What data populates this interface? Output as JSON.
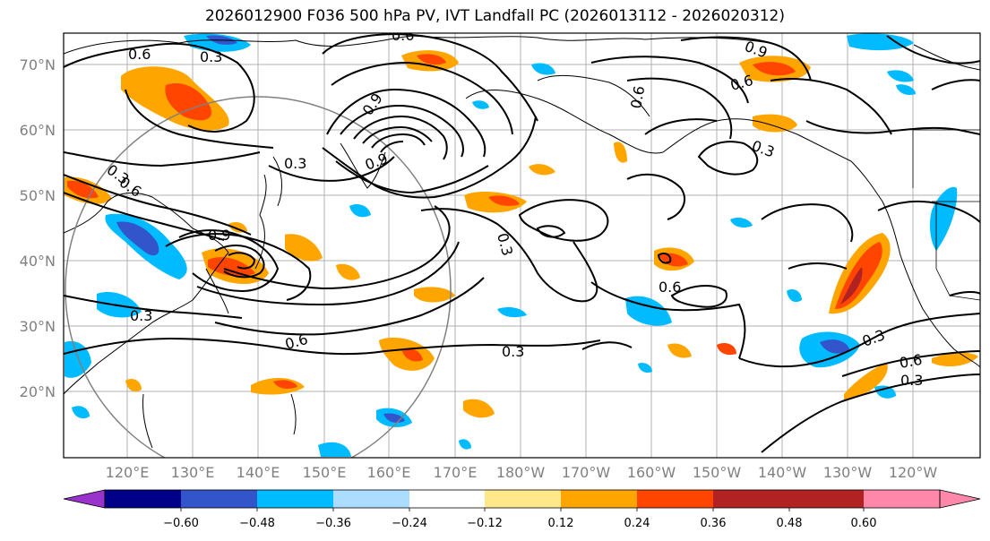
{
  "title": "2026012900 F036 500 hPa PV, IVT Landfall PC (2026013112 - 2026020312)",
  "lat_labels": [
    "70°N",
    "60°N",
    "50°N",
    "40°N",
    "30°N",
    "20°N"
  ],
  "lon_labels": [
    "120°E",
    "130°E",
    "140°E",
    "150°E",
    "160°E",
    "170°E",
    "180°W",
    "170°W",
    "160°W",
    "150°W",
    "140°W",
    "130°W",
    "120°W"
  ],
  "colorbar": {
    "colors": [
      "#9933cc",
      "#000088",
      "#3355cc",
      "#00bbff",
      "#aaddff",
      "#ffffff",
      "#ffe88a",
      "#ffa500",
      "#ff4500",
      "#b22222",
      "#ff88aa"
    ],
    "tick_labels": [
      "−0.60",
      "−0.48",
      "−0.36",
      "−0.24",
      "−0.12",
      "0.12",
      "0.24",
      "0.36",
      "0.48",
      "0.60"
    ]
  },
  "contour_labels": [
    {
      "text": "0.6",
      "color": "black"
    },
    {
      "text": "0.3",
      "color": "black"
    },
    {
      "text": "0.6",
      "color": "black"
    },
    {
      "text": "0.3",
      "color": "black"
    },
    {
      "text": "0.9",
      "color": "black"
    },
    {
      "text": "0.9",
      "color": "black"
    },
    {
      "text": "0.3",
      "color": "black"
    },
    {
      "text": "0.6",
      "color": "black"
    },
    {
      "text": "0.9",
      "color": "black"
    },
    {
      "text": "0.3",
      "color": "black"
    },
    {
      "text": "0.6",
      "color": "black"
    },
    {
      "text": "0.3",
      "color": "black"
    },
    {
      "text": "0.6",
      "color": "black"
    },
    {
      "text": "0.3",
      "color": "black"
    },
    {
      "text": "0.6",
      "color": "black"
    },
    {
      "text": "0.6",
      "color": "black"
    },
    {
      "text": "0.3",
      "color": "black"
    },
    {
      "text": "0.9",
      "color": "black"
    },
    {
      "text": "0.3",
      "color": "black"
    },
    {
      "text": "0.6",
      "color": "black"
    },
    {
      "text": "0.3",
      "color": "black"
    }
  ]
}
